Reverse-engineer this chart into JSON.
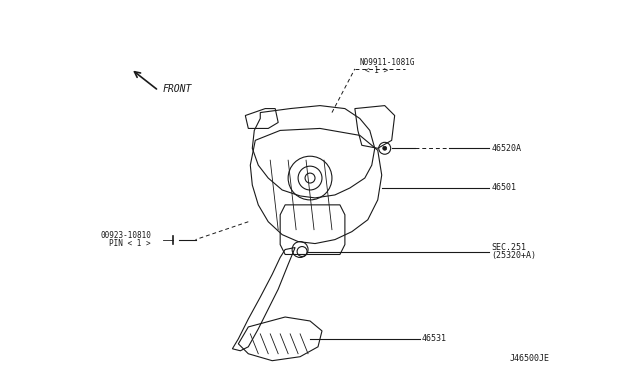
{
  "background_color": "#ffffff",
  "line_color": "#1a1a1a",
  "text_color": "#1a1a1a",
  "title": "",
  "diagram_code": "J46500JE",
  "labels": {
    "front_arrow": "FRONT",
    "part1": "N09911-1081G\n< 1 >",
    "part2": "46520A",
    "part3": "46501",
    "part4": "SEC.251\n(25320+A)",
    "part5": "46531",
    "part6": "00923-10810\nPIN < 1 >"
  },
  "figsize": [
    6.4,
    3.72
  ],
  "dpi": 100
}
